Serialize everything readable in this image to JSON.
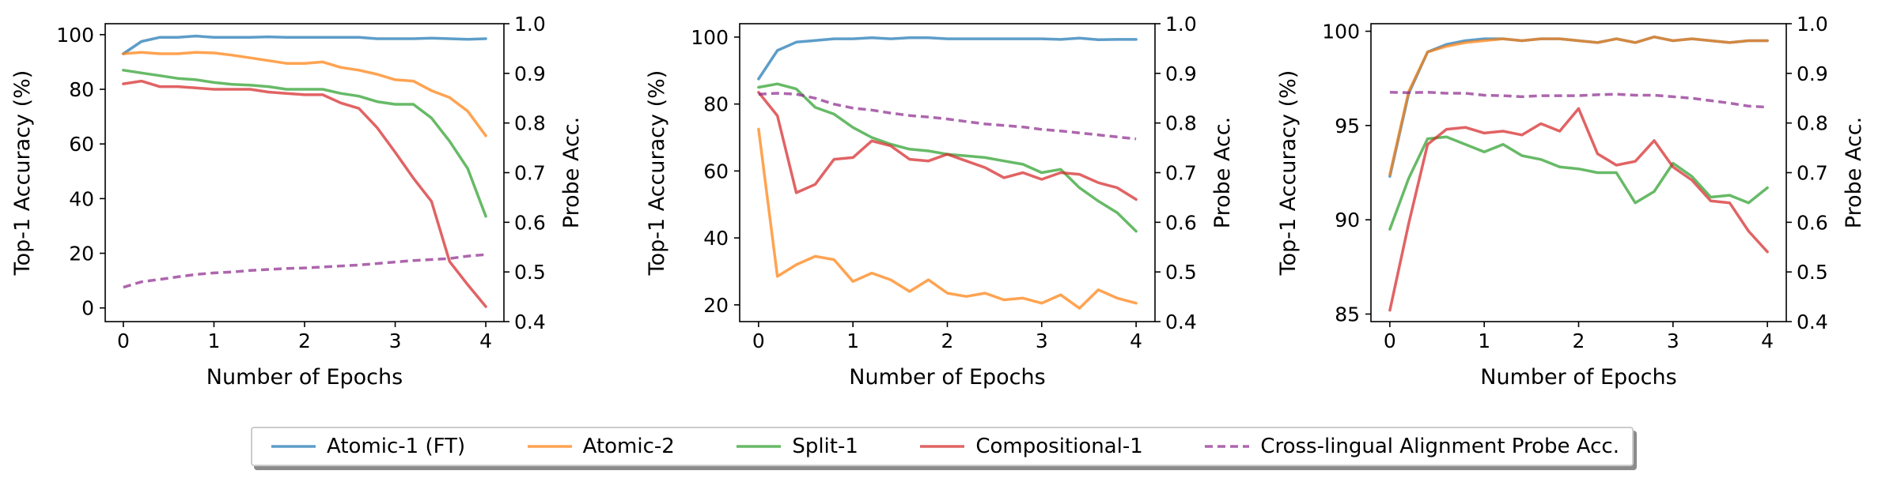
{
  "legend": [
    {
      "label": "Atomic-1 (FT)",
      "color": "#1f77b4",
      "dashed": false
    },
    {
      "label": "Atomic-2",
      "color": "#ff7f0e",
      "dashed": false
    },
    {
      "label": "Split-1",
      "color": "#2ca02c",
      "dashed": false
    },
    {
      "label": "Compositional-1",
      "color": "#d62728",
      "dashed": false
    },
    {
      "label": "Cross-lingual Alignment Probe Acc.",
      "color": "#8e2b8e",
      "dashed": true
    }
  ],
  "chart_data": [
    {
      "type": "line",
      "xlabel": "Number of Epochs",
      "ylabel": "Top-1 Accuracy (%)",
      "y2label": "Probe Acc.",
      "xlim": [
        -0.2,
        4.2
      ],
      "ylim": [
        -5,
        104
      ],
      "y2lim": [
        0.4,
        1.0
      ],
      "xticks": [
        "0",
        "1",
        "2",
        "3",
        "4"
      ],
      "yticks": [
        "0",
        "20",
        "40",
        "60",
        "80",
        "100"
      ],
      "y2ticks": [
        "0.4",
        "0.5",
        "0.6",
        "0.7",
        "0.8",
        "0.9",
        "1.0"
      ],
      "x": [
        0,
        0.2,
        0.4,
        0.6,
        0.8,
        1.0,
        1.2,
        1.4,
        1.6,
        1.8,
        2.0,
        2.2,
        2.4,
        2.6,
        2.8,
        3.0,
        3.2,
        3.4,
        3.6,
        3.8,
        4.0
      ],
      "series": [
        {
          "name": "Atomic-1 (FT)",
          "color": "#1f77b4",
          "axis": "left",
          "values": [
            93,
            97.5,
            99,
            99,
            99.5,
            99,
            99,
            99,
            99.2,
            99,
            99,
            99,
            99,
            99,
            98.5,
            98.5,
            98.5,
            98.7,
            98.5,
            98.3,
            98.5
          ]
        },
        {
          "name": "Atomic-2",
          "color": "#ff7f0e",
          "axis": "left",
          "values": [
            93,
            93.5,
            93,
            93,
            93.5,
            93.3,
            92.5,
            91.5,
            90.5,
            89.5,
            89.5,
            90,
            88,
            87,
            85.5,
            83.5,
            83,
            79.5,
            77,
            72,
            63
          ]
        },
        {
          "name": "Split-1",
          "color": "#2ca02c",
          "axis": "left",
          "values": [
            87,
            86,
            85,
            84,
            83.5,
            82.5,
            81.8,
            81.5,
            81,
            80,
            80,
            80,
            78.5,
            77.5,
            75.5,
            74.5,
            74.5,
            69.5,
            61,
            51,
            33.5
          ]
        },
        {
          "name": "Compositional-1",
          "color": "#d62728",
          "axis": "left",
          "values": [
            82,
            83,
            81,
            81,
            80.5,
            80,
            80,
            80,
            79,
            78.5,
            78,
            78,
            75,
            73,
            66,
            57,
            47.5,
            39,
            17,
            8.5,
            0.5
          ]
        },
        {
          "name": "Cross-lingual Alignment Probe Acc.",
          "color": "#8e2b8e",
          "axis": "right",
          "dashed": true,
          "values": [
            0.469,
            0.48,
            0.485,
            0.49,
            0.495,
            0.498,
            0.5,
            0.503,
            0.505,
            0.507,
            0.508,
            0.51,
            0.512,
            0.514,
            0.517,
            0.52,
            0.523,
            0.525,
            0.527,
            0.532,
            0.535
          ]
        }
      ]
    },
    {
      "type": "line",
      "xlabel": "Number of Epochs",
      "ylabel": "Top-1 Accuracy (%)",
      "y2label": "Probe Acc.",
      "xlim": [
        -0.2,
        4.2
      ],
      "ylim": [
        15,
        104
      ],
      "y2lim": [
        0.4,
        1.0
      ],
      "xticks": [
        "0",
        "1",
        "2",
        "3",
        "4"
      ],
      "yticks": [
        "20",
        "40",
        "60",
        "80",
        "100"
      ],
      "y2ticks": [
        "0.4",
        "0.5",
        "0.6",
        "0.7",
        "0.8",
        "0.9",
        "1.0"
      ],
      "x": [
        0,
        0.2,
        0.4,
        0.6,
        0.8,
        1.0,
        1.2,
        1.4,
        1.6,
        1.8,
        2.0,
        2.2,
        2.4,
        2.6,
        2.8,
        3.0,
        3.2,
        3.4,
        3.6,
        3.8,
        4.0
      ],
      "series": [
        {
          "name": "Atomic-1 (FT)",
          "color": "#1f77b4",
          "axis": "left",
          "values": [
            87.5,
            96,
            98.5,
            99,
            99.5,
            99.5,
            99.8,
            99.5,
            99.8,
            99.8,
            99.5,
            99.5,
            99.5,
            99.5,
            99.5,
            99.5,
            99.3,
            99.7,
            99.2,
            99.3,
            99.3
          ]
        },
        {
          "name": "Atomic-2",
          "color": "#ff7f0e",
          "axis": "left",
          "values": [
            72.5,
            28.5,
            32,
            34.5,
            33.5,
            27,
            29.5,
            27.5,
            24,
            27.5,
            23.5,
            22.5,
            23.5,
            21.5,
            22,
            20.5,
            23,
            19,
            24.5,
            22,
            20.5
          ]
        },
        {
          "name": "Split-1",
          "color": "#2ca02c",
          "axis": "left",
          "values": [
            85,
            86,
            84.5,
            79,
            77,
            73,
            70,
            68,
            66.5,
            66,
            65,
            64.5,
            64,
            63,
            62,
            59.5,
            60.5,
            55,
            51,
            47.5,
            42
          ]
        },
        {
          "name": "Compositional-1",
          "color": "#d62728",
          "axis": "left",
          "values": [
            83.5,
            76.5,
            53.5,
            56,
            63.5,
            64,
            69,
            67.5,
            63.5,
            63,
            65,
            63,
            61,
            58,
            59.5,
            57.5,
            59.5,
            59,
            56.5,
            55,
            51.5
          ]
        },
        {
          "name": "Cross-lingual Alignment Probe Acc.",
          "color": "#8e2b8e",
          "axis": "right",
          "dashed": true,
          "values": [
            0.858,
            0.86,
            0.858,
            0.85,
            0.838,
            0.83,
            0.826,
            0.82,
            0.815,
            0.812,
            0.808,
            0.803,
            0.798,
            0.795,
            0.792,
            0.787,
            0.784,
            0.78,
            0.776,
            0.772,
            0.768
          ]
        }
      ]
    },
    {
      "type": "line",
      "xlabel": "Number of Epochs",
      "ylabel": "Top-1 Accuracy (%)",
      "y2label": "Probe Acc.",
      "xlim": [
        -0.2,
        4.2
      ],
      "ylim": [
        84.6,
        100.4
      ],
      "y2lim": [
        0.4,
        1.0
      ],
      "xticks": [
        "0",
        "1",
        "2",
        "3",
        "4"
      ],
      "yticks": [
        "85",
        "90",
        "95",
        "100"
      ],
      "y2ticks": [
        "0.4",
        "0.5",
        "0.6",
        "0.7",
        "0.8",
        "0.9",
        "1.0"
      ],
      "x": [
        0,
        0.2,
        0.4,
        0.6,
        0.8,
        1.0,
        1.2,
        1.4,
        1.6,
        1.8,
        2.0,
        2.2,
        2.4,
        2.6,
        2.8,
        3.0,
        3.2,
        3.4,
        3.6,
        3.8,
        4.0
      ],
      "series": [
        {
          "name": "Atomic-1 (FT)",
          "color": "#1f77b4",
          "axis": "left",
          "values": [
            92.3,
            96.7,
            98.9,
            99.3,
            99.5,
            99.6,
            99.6,
            99.5,
            99.6,
            99.6,
            99.5,
            99.4,
            99.6,
            99.4,
            99.7,
            99.5,
            99.6,
            99.5,
            99.4,
            99.5,
            99.5
          ]
        },
        {
          "name": "Atomic-2",
          "color": "#ff7f0e",
          "axis": "left",
          "values": [
            92.4,
            96.8,
            98.9,
            99.2,
            99.4,
            99.5,
            99.6,
            99.5,
            99.6,
            99.6,
            99.5,
            99.4,
            99.6,
            99.4,
            99.7,
            99.5,
            99.6,
            99.5,
            99.4,
            99.5,
            99.5
          ]
        },
        {
          "name": "Split-1",
          "color": "#2ca02c",
          "axis": "left",
          "values": [
            89.5,
            92.2,
            94.3,
            94.4,
            94,
            93.6,
            94,
            93.4,
            93.2,
            92.8,
            92.7,
            92.5,
            92.5,
            90.9,
            91.5,
            93,
            92.3,
            91.2,
            91.3,
            90.9,
            91.7
          ]
        },
        {
          "name": "Compositional-1",
          "color": "#d62728",
          "axis": "left",
          "values": [
            85.2,
            89.8,
            94,
            94.8,
            94.9,
            94.6,
            94.7,
            94.5,
            95.1,
            94.7,
            95.9,
            93.5,
            92.9,
            93.1,
            94.2,
            92.8,
            92.1,
            91,
            90.9,
            89.4,
            88.3
          ]
        },
        {
          "name": "Cross-lingual Alignment Probe Acc.",
          "color": "#8e2b8e",
          "axis": "right",
          "dashed": true,
          "values": [
            0.862,
            0.861,
            0.862,
            0.86,
            0.86,
            0.856,
            0.855,
            0.853,
            0.855,
            0.855,
            0.855,
            0.857,
            0.858,
            0.856,
            0.856,
            0.853,
            0.85,
            0.845,
            0.84,
            0.834,
            0.832
          ]
        }
      ]
    }
  ]
}
